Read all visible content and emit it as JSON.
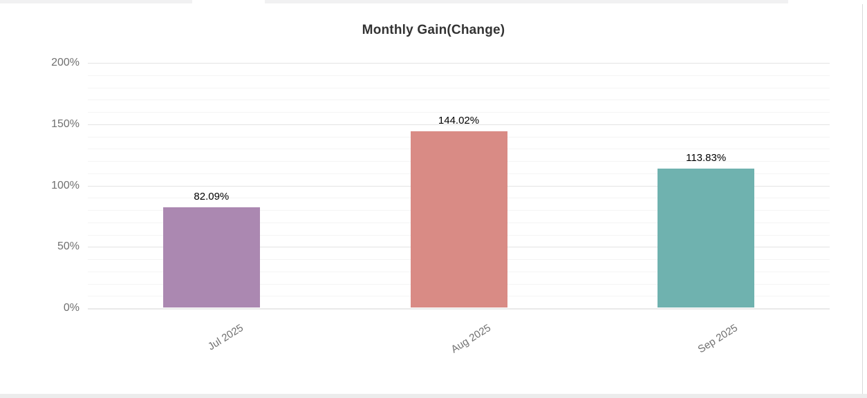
{
  "chart_data": {
    "type": "bar",
    "title": "Monthly Gain(Change)",
    "categories": [
      "Jul 2025",
      "Aug 2025",
      "Sep 2025"
    ],
    "values": [
      82.09,
      144.02,
      113.83
    ],
    "value_labels": [
      "82.09%",
      "144.02%",
      "113.83%"
    ],
    "bar_colors": [
      "#ab88b1",
      "#d98b85",
      "#6fb2af"
    ],
    "xlabel": "",
    "ylabel": "",
    "ylim": [
      0,
      200
    ],
    "ytick_labels": [
      "0%",
      "50%",
      "100%",
      "150%",
      "200%"
    ],
    "ytick_values": [
      0,
      50,
      100,
      150,
      200
    ],
    "minor_grid_step_percent": 10,
    "grid": "on",
    "legend_position": "none",
    "x_label_rotation_deg": -32
  },
  "style": {
    "background": "#ffffff",
    "title_color": "#333333",
    "tick_label_color": "#707070",
    "value_label_color": "#000000",
    "major_grid_color": "#e3e3e3",
    "minor_grid_color": "#f4f4f4",
    "baseline_color": "#e9e9e9",
    "top_strip_color": "#f1f1f2",
    "bottom_strip_color": "#ececec",
    "scrollbar_line_color": "#d9d9d9"
  }
}
